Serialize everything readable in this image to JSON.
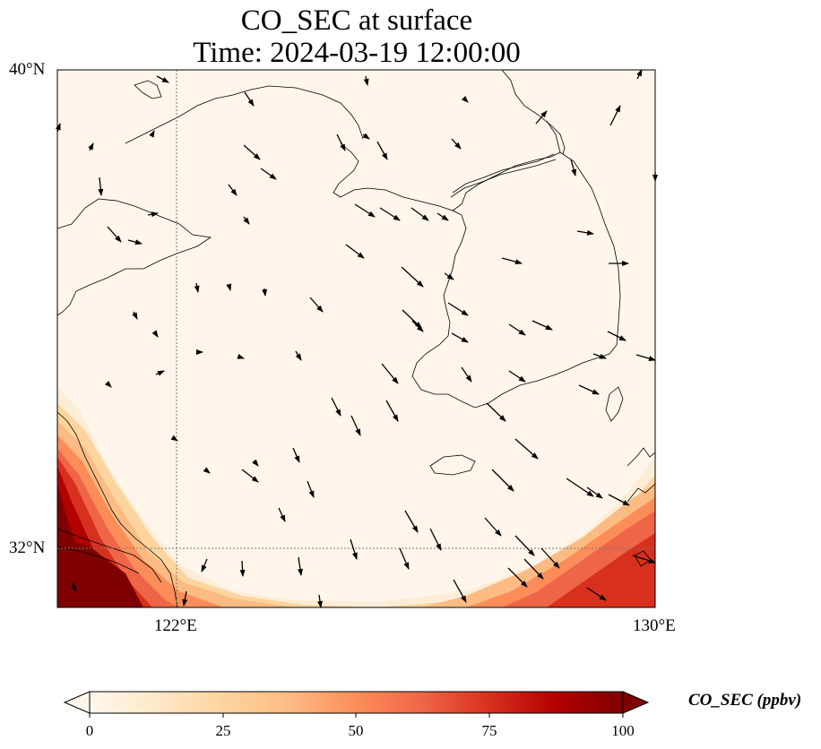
{
  "title": {
    "line1": "CO_SEC at surface",
    "line2": "Time: 2024-03-19 12:00:00"
  },
  "axes": {
    "lat_ticks": [
      "40°N",
      "32°N"
    ],
    "lon_ticks": [
      "122°E",
      "130°E"
    ],
    "gridlines": "dotted"
  },
  "colorbar": {
    "label": "CO_SEC (ppbv)",
    "ticks": [
      "0",
      "25",
      "50",
      "75",
      "100"
    ],
    "min": 0,
    "max": 100,
    "extend": "both",
    "colormap": "OrRd",
    "colors": [
      "#fff7ec",
      "#fee8c8",
      "#fdd49e",
      "#fdbb84",
      "#fc8d59",
      "#ef6548",
      "#d7301f",
      "#b30000",
      "#7f0000"
    ]
  },
  "map": {
    "extent": {
      "lon_min": 120,
      "lon_max": 130,
      "lat_min": 31,
      "lat_max": 40
    },
    "field": "CO_SEC",
    "vectors": "wind"
  }
}
